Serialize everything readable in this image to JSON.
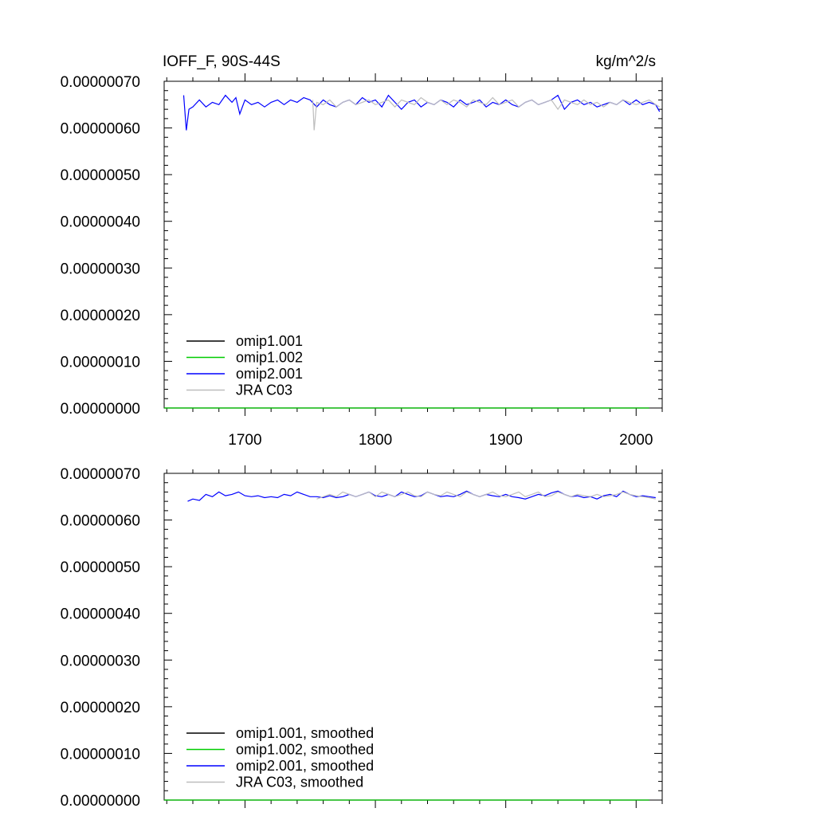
{
  "figure": {
    "title": "IOFF_F, 90S-44S",
    "units": "kg/m^2/s"
  },
  "chart_data": [
    {
      "type": "line",
      "panel": "top",
      "title": "IOFF_F, 90S-44S",
      "units": "kg/m^2/s",
      "xlim": [
        1638,
        2020
      ],
      "ylim": [
        0,
        7e-07
      ],
      "x_ticks": [
        1700,
        1800,
        1900,
        2000
      ],
      "x_tick_labels": [
        "1700",
        "1800",
        "1900",
        "2000"
      ],
      "y_ticks": [
        0,
        1e-07,
        2e-07,
        3e-07,
        4e-07,
        5e-07,
        6e-07,
        7e-07
      ],
      "y_tick_labels": [
        "0.00000000",
        "0.00000010",
        "0.00000020",
        "0.00000030",
        "0.00000040",
        "0.00000050",
        "0.00000060",
        "0.00000070"
      ],
      "legend_position": "bottom-left",
      "series": [
        {
          "name": "omip1.001",
          "color": "#000000",
          "x": [
            1638,
            2010
          ],
          "y": [
            0,
            0
          ]
        },
        {
          "name": "omip1.002",
          "color": "#00cc00",
          "x": [
            1638,
            2010
          ],
          "y": [
            0,
            0
          ]
        },
        {
          "name": "omip2.001",
          "color": "#0000ff",
          "x": [
            1653,
            1655,
            1657,
            1660,
            1665,
            1670,
            1675,
            1680,
            1685,
            1690,
            1693,
            1696,
            1700,
            1705,
            1710,
            1715,
            1720,
            1725,
            1730,
            1735,
            1740,
            1745,
            1750,
            1755,
            1760,
            1765,
            1770,
            1775,
            1780,
            1785,
            1790,
            1795,
            1800,
            1805,
            1810,
            1815,
            1820,
            1825,
            1830,
            1835,
            1840,
            1845,
            1850,
            1855,
            1860,
            1865,
            1870,
            1875,
            1880,
            1885,
            1890,
            1895,
            1900,
            1905,
            1910,
            1915,
            1920,
            1925,
            1930,
            1935,
            1940,
            1945,
            1950,
            1955,
            1960,
            1965,
            1970,
            1975,
            1980,
            1985,
            1990,
            1995,
            2000,
            2005,
            2010,
            2015,
            2018
          ],
          "y": [
            6.7e-07,
            5.95e-07,
            6.4e-07,
            6.45e-07,
            6.6e-07,
            6.45e-07,
            6.55e-07,
            6.5e-07,
            6.7e-07,
            6.55e-07,
            6.65e-07,
            6.3e-07,
            6.6e-07,
            6.5e-07,
            6.55e-07,
            6.45e-07,
            6.55e-07,
            6.6e-07,
            6.5e-07,
            6.6e-07,
            6.55e-07,
            6.65e-07,
            6.6e-07,
            6.45e-07,
            6.6e-07,
            6.5e-07,
            6.45e-07,
            6.55e-07,
            6.6e-07,
            6.5e-07,
            6.65e-07,
            6.55e-07,
            6.6e-07,
            6.45e-07,
            6.7e-07,
            6.55e-07,
            6.4e-07,
            6.55e-07,
            6.6e-07,
            6.45e-07,
            6.55e-07,
            6.5e-07,
            6.6e-07,
            6.55e-07,
            6.45e-07,
            6.6e-07,
            6.5e-07,
            6.55e-07,
            6.6e-07,
            6.45e-07,
            6.55e-07,
            6.5e-07,
            6.6e-07,
            6.5e-07,
            6.45e-07,
            6.55e-07,
            6.6e-07,
            6.5e-07,
            6.55e-07,
            6.6e-07,
            6.7e-07,
            6.4e-07,
            6.55e-07,
            6.6e-07,
            6.5e-07,
            6.55e-07,
            6.45e-07,
            6.5e-07,
            6.55e-07,
            6.5e-07,
            6.6e-07,
            6.5e-07,
            6.6e-07,
            6.5e-07,
            6.55e-07,
            6.5e-07,
            6.35e-07
          ]
        },
        {
          "name": "JRA C03",
          "color": "#bdbdbd",
          "x": [
            1752,
            1753,
            1755,
            1760,
            1765,
            1770,
            1775,
            1780,
            1785,
            1790,
            1795,
            1800,
            1805,
            1810,
            1815,
            1820,
            1825,
            1830,
            1835,
            1840,
            1845,
            1850,
            1855,
            1860,
            1865,
            1870,
            1875,
            1880,
            1885,
            1890,
            1895,
            1900,
            1905,
            1910,
            1915,
            1920,
            1925,
            1930,
            1935,
            1940,
            1945,
            1950,
            1955,
            1960,
            1965,
            1970,
            1975,
            1980,
            1985,
            1990,
            1995,
            2000,
            2005,
            2010,
            2015,
            2018
          ],
          "y": [
            6.6e-07,
            5.95e-07,
            6.55e-07,
            6.5e-07,
            6.6e-07,
            6.45e-07,
            6.55e-07,
            6.6e-07,
            6.5e-07,
            6.55e-07,
            6.6e-07,
            6.5e-07,
            6.55e-07,
            6.6e-07,
            6.45e-07,
            6.6e-07,
            6.55e-07,
            6.5e-07,
            6.65e-07,
            6.55e-07,
            6.5e-07,
            6.6e-07,
            6.5e-07,
            6.6e-07,
            6.55e-07,
            6.45e-07,
            6.6e-07,
            6.55e-07,
            6.5e-07,
            6.65e-07,
            6.5e-07,
            6.55e-07,
            6.6e-07,
            6.45e-07,
            6.55e-07,
            6.6e-07,
            6.5e-07,
            6.55e-07,
            6.6e-07,
            6.4e-07,
            6.6e-07,
            6.55e-07,
            6.5e-07,
            6.6e-07,
            6.5e-07,
            6.55e-07,
            6.45e-07,
            6.55e-07,
            6.5e-07,
            6.6e-07,
            6.55e-07,
            6.5e-07,
            6.55e-07,
            6.6e-07,
            6.5e-07,
            6.45e-07
          ]
        }
      ]
    },
    {
      "type": "line",
      "panel": "bottom",
      "xlim": [
        1638,
        2020
      ],
      "ylim": [
        0,
        7e-07
      ],
      "x_ticks": [
        1700,
        1800,
        1900,
        2000
      ],
      "y_ticks": [
        0,
        1e-07,
        2e-07,
        3e-07,
        4e-07,
        5e-07,
        6e-07,
        7e-07
      ],
      "y_tick_labels": [
        "0.00000000",
        "0.00000010",
        "0.00000020",
        "0.00000030",
        "0.00000040",
        "0.00000050",
        "0.00000060",
        "0.00000070"
      ],
      "legend_position": "bottom-left",
      "series": [
        {
          "name": "omip1.001, smoothed",
          "color": "#000000",
          "x": [
            1638,
            2010
          ],
          "y": [
            0,
            0
          ]
        },
        {
          "name": "omip1.002, smoothed",
          "color": "#00cc00",
          "x": [
            1638,
            2010
          ],
          "y": [
            0,
            0
          ]
        },
        {
          "name": "omip2.001, smoothed",
          "color": "#0000ff",
          "x": [
            1656,
            1660,
            1665,
            1670,
            1675,
            1680,
            1685,
            1690,
            1695,
            1700,
            1705,
            1710,
            1715,
            1720,
            1725,
            1730,
            1735,
            1740,
            1745,
            1750,
            1755,
            1760,
            1765,
            1770,
            1775,
            1780,
            1785,
            1790,
            1795,
            1800,
            1805,
            1810,
            1815,
            1820,
            1825,
            1830,
            1835,
            1840,
            1845,
            1850,
            1855,
            1860,
            1865,
            1870,
            1875,
            1880,
            1885,
            1890,
            1895,
            1900,
            1905,
            1910,
            1915,
            1920,
            1925,
            1930,
            1935,
            1940,
            1945,
            1950,
            1955,
            1960,
            1965,
            1970,
            1975,
            1980,
            1985,
            1990,
            1995,
            2000,
            2005,
            2010,
            2015
          ],
          "y": [
            6.4e-07,
            6.45e-07,
            6.42e-07,
            6.55e-07,
            6.5e-07,
            6.6e-07,
            6.52e-07,
            6.55e-07,
            6.6e-07,
            6.52e-07,
            6.5e-07,
            6.52e-07,
            6.48e-07,
            6.5e-07,
            6.48e-07,
            6.55e-07,
            6.52e-07,
            6.6e-07,
            6.55e-07,
            6.5e-07,
            6.5e-07,
            6.48e-07,
            6.52e-07,
            6.48e-07,
            6.5e-07,
            6.55e-07,
            6.5e-07,
            6.55e-07,
            6.6e-07,
            6.52e-07,
            6.5e-07,
            6.55e-07,
            6.5e-07,
            6.6e-07,
            6.55e-07,
            6.5e-07,
            6.52e-07,
            6.6e-07,
            6.55e-07,
            6.5e-07,
            6.52e-07,
            6.5e-07,
            6.55e-07,
            6.62e-07,
            6.55e-07,
            6.5e-07,
            6.55e-07,
            6.52e-07,
            6.5e-07,
            6.55e-07,
            6.5e-07,
            6.48e-07,
            6.45e-07,
            6.5e-07,
            6.55e-07,
            6.52e-07,
            6.58e-07,
            6.62e-07,
            6.55e-07,
            6.5e-07,
            6.52e-07,
            6.48e-07,
            6.5e-07,
            6.45e-07,
            6.52e-07,
            6.55e-07,
            6.5e-07,
            6.62e-07,
            6.55e-07,
            6.5e-07,
            6.52e-07,
            6.5e-07,
            6.48e-07
          ]
        },
        {
          "name": "JRA C03, smoothed",
          "color": "#bdbdbd",
          "x": [
            1755,
            1760,
            1765,
            1770,
            1775,
            1780,
            1785,
            1790,
            1795,
            1800,
            1805,
            1810,
            1815,
            1820,
            1825,
            1830,
            1835,
            1840,
            1845,
            1850,
            1855,
            1860,
            1865,
            1870,
            1875,
            1880,
            1885,
            1890,
            1895,
            1900,
            1905,
            1910,
            1915,
            1920,
            1925,
            1930,
            1935,
            1940,
            1945,
            1950,
            1955,
            1960,
            1965,
            1970,
            1975,
            1980,
            1985,
            1990,
            1995,
            2000,
            2005,
            2010,
            2015
          ],
          "y": [
            6.45e-07,
            6.5e-07,
            6.55e-07,
            6.5e-07,
            6.6e-07,
            6.55e-07,
            6.5e-07,
            6.55e-07,
            6.6e-07,
            6.5e-07,
            6.6e-07,
            6.55e-07,
            6.5e-07,
            6.55e-07,
            6.6e-07,
            6.52e-07,
            6.5e-07,
            6.6e-07,
            6.55e-07,
            6.52e-07,
            6.6e-07,
            6.55e-07,
            6.5e-07,
            6.6e-07,
            6.55e-07,
            6.5e-07,
            6.55e-07,
            6.6e-07,
            6.52e-07,
            6.5e-07,
            6.55e-07,
            6.6e-07,
            6.5e-07,
            6.55e-07,
            6.6e-07,
            6.5e-07,
            6.52e-07,
            6.6e-07,
            6.55e-07,
            6.5e-07,
            6.55e-07,
            6.52e-07,
            6.5e-07,
            6.55e-07,
            6.5e-07,
            6.52e-07,
            6.55e-07,
            6.6e-07,
            6.55e-07,
            6.52e-07,
            6.5e-07,
            6.48e-07,
            6.45e-07
          ]
        }
      ]
    }
  ]
}
